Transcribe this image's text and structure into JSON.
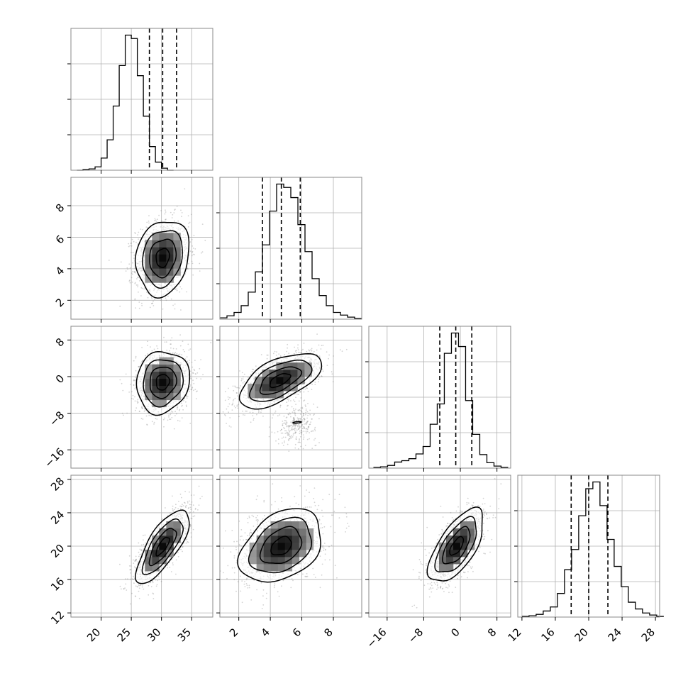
{
  "chart_data": {
    "type": "corner",
    "parameters": [
      {
        "range": [
          15,
          38.5
        ],
        "ticks": [
          20,
          25,
          30,
          35
        ],
        "quantiles": [
          28.0,
          30.2,
          32.5
        ],
        "hist_edges_start": 16,
        "hist_bin_width": 1,
        "hist_values": [
          0,
          1,
          2,
          5,
          18,
          45,
          95,
          155,
          200,
          195,
          140,
          80,
          35,
          12,
          3,
          0
        ]
      },
      {
        "range": [
          0.8,
          9.8
        ],
        "ticks": [
          2,
          4,
          6,
          8
        ],
        "quantiles": [
          3.5,
          4.7,
          5.9
        ],
        "hist_edges_start": 0.8,
        "hist_bin_width": 0.45,
        "hist_values": [
          2,
          5,
          10,
          20,
          40,
          70,
          110,
          160,
          200,
          195,
          180,
          140,
          100,
          60,
          35,
          20,
          10,
          6,
          3,
          1
        ]
      },
      {
        "range": [
          -20,
          11
        ],
        "ticks": [
          -16,
          -8,
          0,
          8
        ],
        "quantiles": [
          -4.5,
          -1.0,
          2.5
        ],
        "hist_edges_start": -19,
        "hist_bin_width": 1.55,
        "hist_values": [
          1,
          2,
          4,
          9,
          11,
          14,
          21,
          32,
          65,
          95,
          170,
          200,
          180,
          100,
          50,
          20,
          8,
          3,
          1
        ]
      },
      {
        "range": [
          11.5,
          28.5
        ],
        "ticks": [
          12,
          16,
          20,
          24,
          28
        ],
        "quantiles": [
          17.9,
          20.0,
          22.3
        ],
        "hist_edges_start": 12,
        "hist_bin_width": 0.85,
        "hist_values": [
          1,
          2,
          4,
          9,
          15,
          35,
          70,
          100,
          150,
          190,
          200,
          165,
          115,
          75,
          45,
          22,
          12,
          6,
          3,
          1
        ]
      }
    ],
    "pairs": [
      {
        "row": 1,
        "col": 0,
        "mean": [
          30.2,
          4.7
        ],
        "sd": [
          2.2,
          1.2
        ],
        "rho": 0.15,
        "secondary": null
      },
      {
        "row": 2,
        "col": 0,
        "mean": [
          30.2,
          -1.2
        ],
        "sd": [
          2.2,
          3.4
        ],
        "rho": 0.1,
        "secondary": null
      },
      {
        "row": 2,
        "col": 1,
        "mean": [
          4.6,
          -0.8
        ],
        "sd": [
          1.3,
          3.0
        ],
        "rho": 0.6,
        "secondary": {
          "mean": [
            5.7,
            -10.5
          ],
          "sd": [
            0.6,
            2.0
          ],
          "rho": 0.2,
          "fraction": 0.08
        }
      },
      {
        "row": 3,
        "col": 0,
        "mean": [
          30.2,
          20.0
        ],
        "sd": [
          2.2,
          2.2
        ],
        "rho": 0.75,
        "secondary": null
      },
      {
        "row": 3,
        "col": 1,
        "mean": [
          4.7,
          20.0
        ],
        "sd": [
          1.3,
          2.2
        ],
        "rho": 0.35,
        "secondary": null
      },
      {
        "row": 3,
        "col": 2,
        "mean": [
          -0.8,
          20.0
        ],
        "sd": [
          3.0,
          2.2
        ],
        "rho": 0.65,
        "secondary": null
      }
    ],
    "contour_levels_sigma": [
      0.5,
      1.0,
      1.5,
      2.0
    ],
    "grid": true
  }
}
